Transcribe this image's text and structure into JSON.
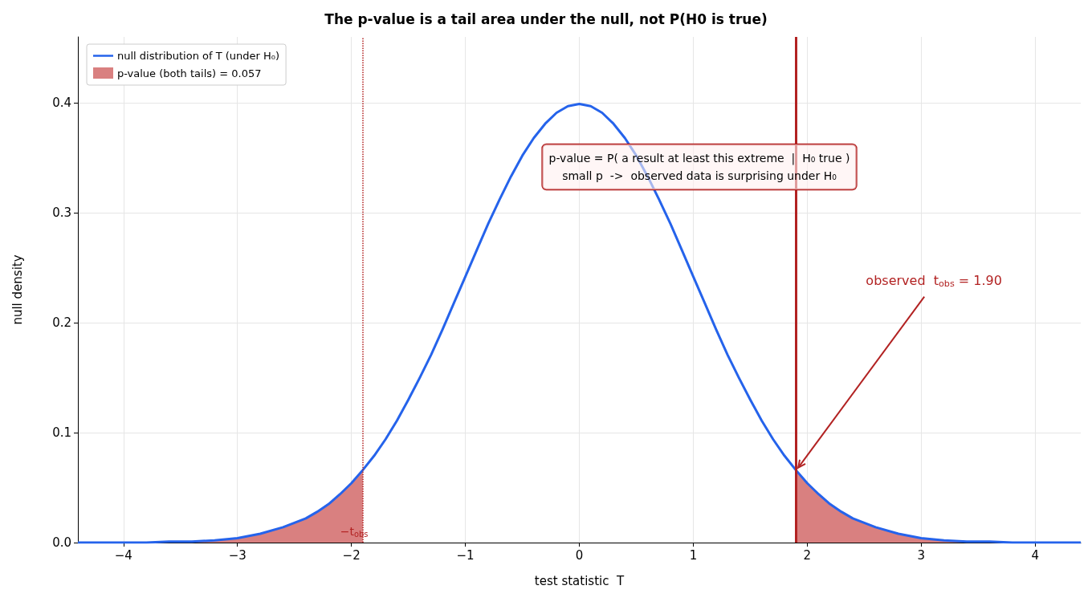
{
  "chart_data": {
    "type": "line",
    "title": "The p-value is a tail area under the null, not P(H0 is true)",
    "xlabel": "test statistic  T",
    "ylabel": "null density",
    "xlim": [
      -4.4,
      4.4
    ],
    "xticks": [
      {
        "value": -4,
        "label": "−4"
      },
      {
        "value": -3,
        "label": "−3"
      },
      {
        "value": -2,
        "label": "−2"
      },
      {
        "value": -1,
        "label": "−1"
      },
      0,
      1,
      2,
      3,
      4
    ],
    "ylim": [
      0,
      0.46
    ],
    "yticks": [
      {
        "value": 0,
        "label": "0.0"
      },
      0.1,
      0.2,
      0.3,
      0.4
    ],
    "grid": true,
    "legend": "top left",
    "marker": "none",
    "series": [
      {
        "name": "null distribution of T (under H₀)",
        "type": "line",
        "color": "#2563eb",
        "x": [
          -4.4,
          -4.2,
          -4.0,
          -3.8,
          -3.6,
          -3.4,
          -3.2,
          -3.0,
          -2.8,
          -2.6,
          -2.5,
          -2.4,
          -2.3,
          -2.2,
          -2.1,
          -2.0,
          -1.9,
          -1.8,
          -1.7,
          -1.6,
          -1.5,
          -1.4,
          -1.3,
          -1.2,
          -1.1,
          -1.0,
          -0.9,
          -0.8,
          -0.7,
          -0.6,
          -0.5,
          -0.4,
          -0.3,
          -0.2,
          -0.1,
          0,
          0.1,
          0.2,
          0.3,
          0.4,
          0.5,
          0.6,
          0.7,
          0.8,
          0.9,
          1.0,
          1.1,
          1.2,
          1.3,
          1.4,
          1.5,
          1.6,
          1.7,
          1.8,
          1.9,
          2.0,
          2.1,
          2.2,
          2.3,
          2.4,
          2.5,
          2.6,
          2.8,
          3.0,
          3.2,
          3.4,
          3.6,
          3.8,
          4.0,
          4.2,
          4.4
        ],
        "values": [
          0.0,
          0.0,
          0.0,
          0.0,
          0.001,
          0.001,
          0.002,
          0.004,
          0.008,
          0.014,
          0.018,
          0.022,
          0.028,
          0.035,
          0.044,
          0.054,
          0.066,
          0.079,
          0.094,
          0.111,
          0.13,
          0.15,
          0.171,
          0.194,
          0.218,
          0.242,
          0.266,
          0.29,
          0.312,
          0.333,
          0.352,
          0.368,
          0.381,
          0.391,
          0.397,
          0.399,
          0.397,
          0.391,
          0.381,
          0.368,
          0.352,
          0.333,
          0.312,
          0.29,
          0.266,
          0.242,
          0.218,
          0.194,
          0.171,
          0.15,
          0.13,
          0.111,
          0.094,
          0.079,
          0.066,
          0.054,
          0.044,
          0.035,
          0.028,
          0.022,
          0.018,
          0.014,
          0.008,
          0.004,
          0.002,
          0.001,
          0.001,
          0.0,
          0.0,
          0.0,
          0.0
        ]
      },
      {
        "name": "p-value (both tails) = 0.057",
        "type": "area",
        "color": "#d98080",
        "x": [
          -4.4,
          -4.2,
          -4.0,
          -3.8,
          -3.6,
          -3.4,
          -3.2,
          -3.0,
          -2.8,
          -2.6,
          -2.4,
          -2.2,
          -2.0,
          -1.9,
          null,
          1.9,
          2.0,
          2.2,
          2.4,
          2.6,
          2.8,
          3.0,
          3.2,
          3.4,
          3.6,
          3.8,
          4.0,
          4.2,
          4.4
        ],
        "values": [
          0.0,
          0.0,
          0.0,
          0.0,
          0.001,
          0.001,
          0.002,
          0.004,
          0.008,
          0.014,
          0.022,
          0.035,
          0.054,
          0.066,
          null,
          0.066,
          0.054,
          0.035,
          0.022,
          0.014,
          0.008,
          0.004,
          0.002,
          0.001,
          0.001,
          0.0,
          0.0,
          0.0,
          0.0
        ]
      }
    ],
    "ref_lines": [
      {
        "axis": "x",
        "value": 1.9,
        "color": "#b22222",
        "line_style": "solid"
      },
      {
        "axis": "x",
        "value": -1.9,
        "label": "−t$_{obs}$",
        "color": "#b22222",
        "line_style": "dotted"
      }
    ],
    "annotations": [
      "p-value = P( a result at least this extreme  |  H₀ true )\nsmall p  ->  observed data is surprising under H₀",
      {
        "text": "observed  t$_{obs}$ = 1.90",
        "x": 1.9,
        "y": 0.066
      }
    ]
  }
}
